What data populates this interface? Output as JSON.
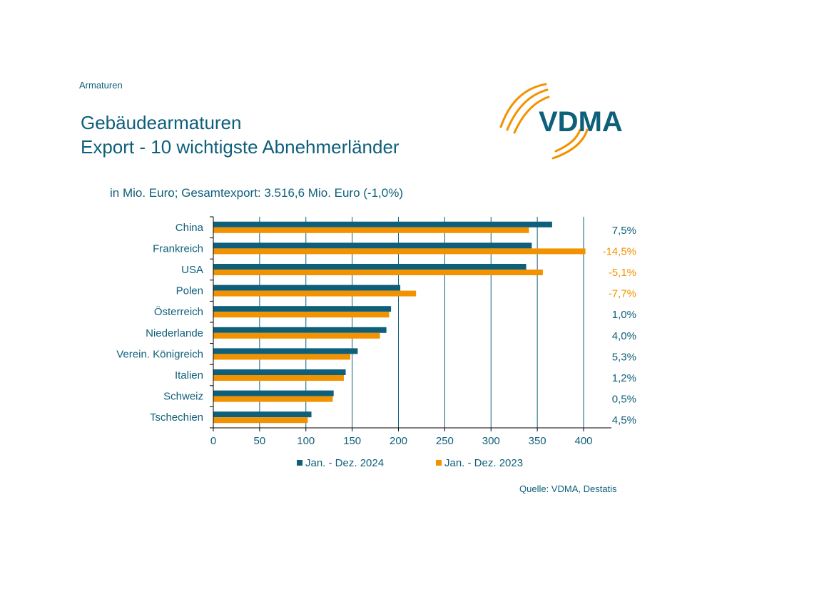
{
  "header": {
    "section_label": "Armaturen",
    "title_line1": "Gebäudearmaturen",
    "title_line2": "Export - 10 wichtigste Abnehmerländer",
    "subtitle": "in Mio. Euro; Gesamtexport: 3.516,6 Mio. Euro (-1,0%)",
    "logo_text": "VDMA"
  },
  "footer": {
    "source": "Quelle: VDMA, Destatis"
  },
  "colors": {
    "series_2024": "#0e5f7a",
    "series_2023": "#f39200",
    "text": "#0e5f7a"
  },
  "chart_data": {
    "type": "bar",
    "orientation": "horizontal",
    "title": "Gebäudearmaturen Export - 10 wichtigste Abnehmerländer",
    "xlabel": "",
    "ylabel": "",
    "xlim": [
      0,
      430
    ],
    "xticks": [
      0,
      50,
      100,
      150,
      200,
      250,
      300,
      350,
      400
    ],
    "grid": "vertical",
    "legend": "bottom",
    "categories": [
      "China",
      "Frankreich",
      "USA",
      "Polen",
      "Österreich",
      "Niederlande",
      "Verein. Königreich",
      "Italien",
      "Schweiz",
      "Tschechien"
    ],
    "series": [
      {
        "name": "Jan. - Dez. 2024",
        "color": "#0e5f7a",
        "values": [
          366,
          344,
          338,
          202,
          192,
          187,
          156,
          143,
          130,
          106
        ]
      },
      {
        "name": "Jan. - Dez. 2023",
        "color": "#f39200",
        "values": [
          341,
          402,
          356,
          219,
          190,
          180,
          148,
          141,
          129,
          102
        ]
      }
    ],
    "change_labels": [
      "7,5%",
      "-14,5%",
      "-5,1%",
      "-7,7%",
      "1,0%",
      "4,0%",
      "5,3%",
      "1,2%",
      "0,5%",
      "4,5%"
    ],
    "change_negative": [
      false,
      true,
      true,
      true,
      false,
      false,
      false,
      false,
      false,
      false
    ]
  }
}
